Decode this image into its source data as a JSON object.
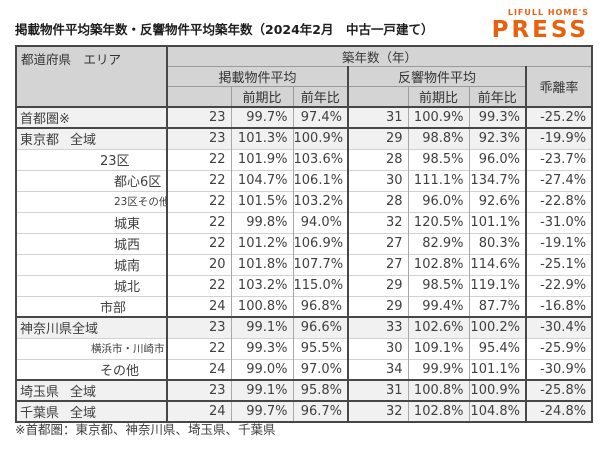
{
  "title": "掲載物件平均築年数・反響物件平均築年数（2024年2月　中古一戸建て）",
  "logo": {
    "brand": "LIFULL HOME'S",
    "press": "PRESS"
  },
  "footnote": "※首都圏：東京都、神奈川県、埼玉県、千葉県",
  "colors": {
    "accent_orange": "#e8610f",
    "header_bg": "#d4d4d4",
    "shaded_row_bg": "#f1f1f1",
    "border_dark": "#474747",
    "border_light": "#d2d2d2",
    "text": "#3f3f3f"
  },
  "chart_data": {
    "type": "table",
    "title": "掲載物件平均築年数・反響物件平均築年数（2024年2月　中古一戸建て）",
    "header": {
      "area_col": "都道府県　エリア",
      "age_group": "築年数（年）",
      "listed_group": "掲載物件平均",
      "inquiry_group": "反響物件平均",
      "qoq": "前期比",
      "yoy": "前年比",
      "gap": "乖離率"
    },
    "value_columns": [
      "掲載物件平均築年数",
      "掲載前期比",
      "掲載前年比",
      "反響物件平均築年数",
      "反響前期比",
      "反響前年比",
      "乖離率"
    ],
    "rows": [
      {
        "pref": "首都圏※",
        "area": "",
        "level": 0,
        "shaded": true,
        "sep": false,
        "small": false,
        "values": [
          "23",
          "99.7%",
          "97.4%",
          "31",
          "100.9%",
          "99.3%",
          "-25.2%"
        ]
      },
      {
        "pref": "東京都",
        "area": "全域",
        "level": 1,
        "shaded": true,
        "sep": true,
        "small": false,
        "values": [
          "23",
          "101.3%",
          "100.9%",
          "29",
          "98.8%",
          "92.3%",
          "-19.9%"
        ]
      },
      {
        "pref": "",
        "area": "23区",
        "level": 2,
        "shaded": false,
        "sep": false,
        "small": false,
        "values": [
          "22",
          "101.9%",
          "103.6%",
          "28",
          "98.5%",
          "96.0%",
          "-23.7%"
        ]
      },
      {
        "pref": "",
        "area": "都心6区",
        "level": 3,
        "shaded": false,
        "sep": false,
        "small": false,
        "values": [
          "22",
          "104.7%",
          "106.1%",
          "30",
          "111.1%",
          "134.7%",
          "-27.4%"
        ]
      },
      {
        "pref": "",
        "area": "23区その他",
        "level": 3,
        "shaded": false,
        "sep": false,
        "small": true,
        "values": [
          "22",
          "101.5%",
          "103.2%",
          "28",
          "96.0%",
          "92.6%",
          "-22.8%"
        ]
      },
      {
        "pref": "",
        "area": "城東",
        "level": 3,
        "shaded": false,
        "sep": false,
        "small": false,
        "values": [
          "22",
          "99.8%",
          "94.0%",
          "32",
          "120.5%",
          "101.1%",
          "-31.0%"
        ]
      },
      {
        "pref": "",
        "area": "城西",
        "level": 3,
        "shaded": false,
        "sep": false,
        "small": false,
        "values": [
          "22",
          "101.2%",
          "106.9%",
          "27",
          "82.9%",
          "80.3%",
          "-19.1%"
        ]
      },
      {
        "pref": "",
        "area": "城南",
        "level": 3,
        "shaded": false,
        "sep": false,
        "small": false,
        "values": [
          "20",
          "101.8%",
          "107.7%",
          "27",
          "102.8%",
          "114.6%",
          "-25.1%"
        ]
      },
      {
        "pref": "",
        "area": "城北",
        "level": 3,
        "shaded": false,
        "sep": false,
        "small": false,
        "values": [
          "22",
          "103.2%",
          "115.0%",
          "29",
          "98.5%",
          "119.1%",
          "-22.9%"
        ]
      },
      {
        "pref": "",
        "area": "市部",
        "level": 2,
        "shaded": false,
        "sep": false,
        "small": false,
        "values": [
          "24",
          "100.8%",
          "96.8%",
          "29",
          "99.4%",
          "87.7%",
          "-16.8%"
        ]
      },
      {
        "pref": "神奈川県",
        "area": "全域",
        "level": 1,
        "shaded": true,
        "sep": true,
        "small": false,
        "values": [
          "23",
          "99.1%",
          "96.6%",
          "33",
          "102.6%",
          "100.2%",
          "-30.4%"
        ]
      },
      {
        "pref": "",
        "area": "横浜市・川崎市",
        "level": 2,
        "shaded": false,
        "sep": false,
        "small": true,
        "values": [
          "22",
          "99.3%",
          "95.5%",
          "30",
          "109.1%",
          "95.4%",
          "-25.9%"
        ]
      },
      {
        "pref": "",
        "area": "その他",
        "level": 2,
        "shaded": false,
        "sep": false,
        "small": false,
        "values": [
          "24",
          "99.0%",
          "97.0%",
          "34",
          "99.9%",
          "101.1%",
          "-30.9%"
        ]
      },
      {
        "pref": "埼玉県",
        "area": "全域",
        "level": 1,
        "shaded": true,
        "sep": true,
        "small": false,
        "values": [
          "23",
          "99.1%",
          "95.8%",
          "31",
          "100.8%",
          "100.9%",
          "-25.8%"
        ]
      },
      {
        "pref": "千葉県",
        "area": "全域",
        "level": 1,
        "shaded": true,
        "sep": true,
        "small": false,
        "values": [
          "24",
          "99.7%",
          "96.7%",
          "32",
          "102.8%",
          "104.8%",
          "-24.8%"
        ]
      }
    ]
  }
}
